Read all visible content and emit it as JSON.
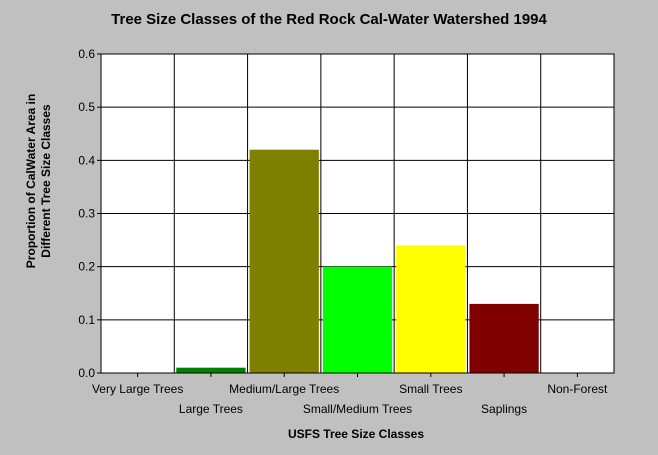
{
  "chart_data": {
    "type": "bar",
    "title": "Tree Size Classes of the Red Rock Cal-Water Watershed 1994",
    "xlabel": "USFS Tree Size Classes",
    "ylabel_lines": [
      "Proportion of CalWater Area in",
      "Different Tree Size Classes"
    ],
    "categories": [
      "Very Large Trees",
      "Large Trees",
      "Medium/Large Trees",
      "Small/Medium Trees",
      "Small Trees",
      "Saplings",
      "Non-Forest"
    ],
    "values": [
      0.0,
      0.01,
      0.42,
      0.2,
      0.24,
      0.13,
      0.0
    ],
    "colors": [
      "#000000",
      "#008000",
      "#808000",
      "#00ff00",
      "#ffff00",
      "#800000",
      "#000000"
    ],
    "ylim": [
      0,
      0.6
    ],
    "yticks": [
      "0.0",
      "0.1",
      "0.2",
      "0.3",
      "0.4",
      "0.5",
      "0.6"
    ],
    "grid": true,
    "plot_background": "#ffffff",
    "page_background": "#c0c0c0"
  }
}
